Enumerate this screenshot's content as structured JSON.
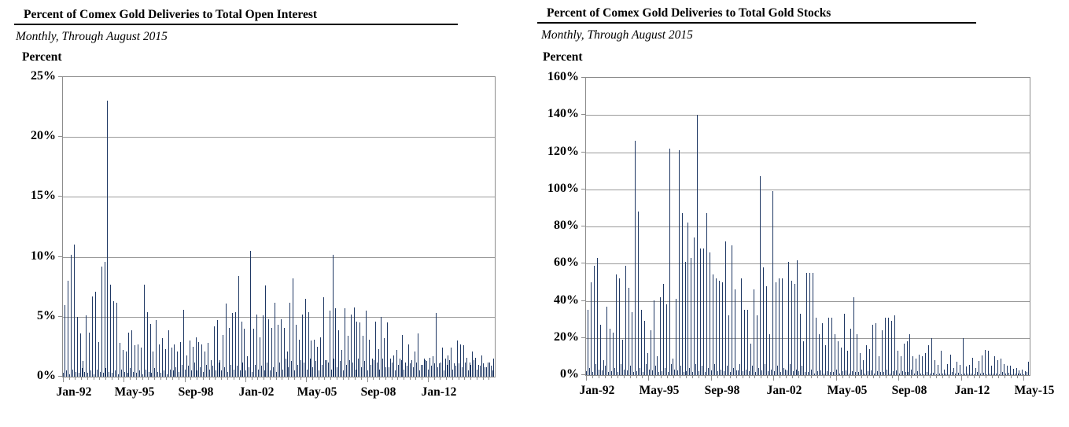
{
  "page": {
    "background_color": "#ffffff",
    "text_color": "#000000"
  },
  "colors": {
    "bar": "#1F3864",
    "gridline": "#9a9a9a",
    "plot_border": "#8c8c8c",
    "axis_text": "#000000"
  },
  "charts": [
    {
      "title": "Percent of Comex Gold Deliveries to Total Open Interest",
      "subtitle": "Monthly, Through August 2015",
      "y_axis_title": "Percent",
      "chart_data": {
        "type": "bar",
        "title": "Percent of Comex Gold Deliveries to Total Open Interest",
        "subtitle": "Monthly, Through August 2015",
        "ylabel": "Percent",
        "ylim": [
          0,
          25
        ],
        "y_ticks": [
          0,
          5,
          10,
          15,
          20,
          25
        ],
        "y_tick_suffix": "%",
        "grid": true,
        "legend": "none",
        "x_start": "Jan-1992",
        "x_end": "Aug-2015",
        "n_months": 284,
        "x_tick_months": [
          0,
          40,
          80,
          120,
          160,
          200,
          240
        ],
        "x_tick_labels": [
          "Jan-92",
          "May-95",
          "Sep-98",
          "Jan-02",
          "May-05",
          "Sep-08",
          "Jan-12"
        ],
        "values": [
          0.3,
          6,
          0.5,
          8,
          0.2,
          10.2,
          0.6,
          11,
          0.4,
          5,
          0.3,
          3.6,
          0.7,
          1.3,
          0.4,
          5.1,
          0.3,
          3.7,
          0.5,
          6.7,
          0.2,
          7.1,
          0.6,
          2.9,
          0.4,
          9.2,
          0.3,
          9.6,
          0.7,
          23,
          0.4,
          7.7,
          0.3,
          6.3,
          0.5,
          6.2,
          0.2,
          2.8,
          0.6,
          2.2,
          0.4,
          2.1,
          0.3,
          3.7,
          0.7,
          3.9,
          0.4,
          2.6,
          0.3,
          2.7,
          0.5,
          2.4,
          0.2,
          7.7,
          0.6,
          5.4,
          0.4,
          4.4,
          0.3,
          2.1,
          0.7,
          4.7,
          0.4,
          2.7,
          0.3,
          3.2,
          0.5,
          2.3,
          0.2,
          3.9,
          0.6,
          2.4,
          0.5,
          2.7,
          0.8,
          2.1,
          0.4,
          2.9,
          1.0,
          5.6,
          0.6,
          1.8,
          0.9,
          3.0,
          0.5,
          2.5,
          1.2,
          3.3,
          0.5,
          2.9,
          0.8,
          2.7,
          0.4,
          2.1,
          1.0,
          2.8,
          0.6,
          1.4,
          0.9,
          4.2,
          0.5,
          4.7,
          1.2,
          1.4,
          0.5,
          3.5,
          0.8,
          6.1,
          0.4,
          4.1,
          1.0,
          5.3,
          0.6,
          5.4,
          0.9,
          8.4,
          0.5,
          4.6,
          1.2,
          4.0,
          0.5,
          1.7,
          0.8,
          10.5,
          0.4,
          4.0,
          1.0,
          5.2,
          0.6,
          3.3,
          0.9,
          5.1,
          0.5,
          7.6,
          1.2,
          4.8,
          0.5,
          4.1,
          0.8,
          6.2,
          0.4,
          4.3,
          1.2,
          4.8,
          0.6,
          4.1,
          1.5,
          2.1,
          0.8,
          6.2,
          1.3,
          8.2,
          0.5,
          4.3,
          1.0,
          3.1,
          1.4,
          5.2,
          1.2,
          6.5,
          0.6,
          5.4,
          1.5,
          3.0,
          0.8,
          3.1,
          1.3,
          2.5,
          0.5,
          3.3,
          1.0,
          6.6,
          1.4,
          1.4,
          1.2,
          5.5,
          0.6,
          10.2,
          1.5,
          5.7,
          0.8,
          3.9,
          1.3,
          2.2,
          0.5,
          5.7,
          1.0,
          3.4,
          1.4,
          5.2,
          1.2,
          5.8,
          0.6,
          4.6,
          1.5,
          4.5,
          0.8,
          3.4,
          1.3,
          5.5,
          0.5,
          3.1,
          1.0,
          1.5,
          1.4,
          4.6,
          1.2,
          2.3,
          0.6,
          5.0,
          1.5,
          3.2,
          0.8,
          4.5,
          0.8,
          1.5,
          1.2,
          1.8,
          0.5,
          2.2,
          1.0,
          1.5,
          1.4,
          3.5,
          0.6,
          1.2,
          0.9,
          2.7,
          1.1,
          1.4,
          0.8,
          2.1,
          1.2,
          3.6,
          0.5,
          1.0,
          1.0,
          1.5,
          1.4,
          1.3,
          0.6,
          1.6,
          0.9,
          1.7,
          1.1,
          5.3,
          0.8,
          1.1,
          1.2,
          2.4,
          0.5,
          1.5,
          1.0,
          1.8,
          1.4,
          2.4,
          0.6,
          1.1,
          0.9,
          3.0,
          1.1,
          2.7,
          0.8,
          2.6,
          1.2,
          1.6,
          0.5,
          1.2,
          1.0,
          2.1,
          1.4,
          1.6,
          0.6,
          1.0,
          0.9,
          1.8,
          1.1,
          0.8,
          0.8,
          1.2,
          1.2,
          0.9,
          0.5,
          1.5
        ]
      }
    },
    {
      "title": "Percent of Comex Gold Deliveries to Total Gold Stocks",
      "subtitle": "Monthly, Through August 2015",
      "y_axis_title": "Percent",
      "chart_data": {
        "type": "bar",
        "title": "Percent of Comex Gold Deliveries to Total Gold Stocks",
        "subtitle": "Monthly, Through August 2015",
        "ylabel": "Percent",
        "ylim": [
          0,
          160
        ],
        "y_ticks": [
          0,
          20,
          40,
          60,
          80,
          100,
          120,
          140,
          160
        ],
        "y_tick_suffix": "%",
        "grid": true,
        "legend": "none",
        "x_start": "Jan-1992",
        "x_end": "Aug-2015",
        "n_months": 284,
        "x_tick_months": [
          0,
          40,
          80,
          120,
          160,
          200,
          240,
          280
        ],
        "x_tick_labels": [
          "Jan-92",
          "May-95",
          "Sep-98",
          "Jan-02",
          "May-05",
          "Sep-08",
          "Jan-12",
          "May-15"
        ],
        "values": [
          2,
          35,
          4,
          50,
          1.5,
          59,
          6,
          63,
          3,
          27,
          2.5,
          8,
          5,
          37,
          1.5,
          25,
          2,
          23,
          4,
          54,
          1.5,
          52,
          6,
          19,
          3,
          59,
          2.5,
          47,
          5,
          34,
          1.5,
          126,
          2,
          88,
          4,
          35,
          1.5,
          29,
          6,
          12,
          3,
          24,
          2.5,
          40,
          5,
          10,
          1.5,
          42,
          2,
          49,
          4,
          38,
          1.5,
          122,
          6,
          9,
          3,
          41,
          2.5,
          121,
          5,
          87,
          1.5,
          61,
          2,
          82,
          4,
          63,
          1.5,
          74,
          6,
          140,
          2,
          68,
          5,
          68,
          1.5,
          87,
          4,
          66,
          2.5,
          54,
          6,
          52,
          2,
          51,
          3,
          50,
          2,
          72,
          5,
          32,
          1.5,
          70,
          4,
          46,
          2.5,
          2.5,
          6,
          52,
          2,
          35,
          3,
          35,
          2,
          17,
          5,
          46,
          1.5,
          32,
          4,
          107,
          2.5,
          58,
          6,
          48,
          2,
          22,
          3,
          99,
          2,
          50,
          5,
          52,
          1.5,
          52,
          4,
          3,
          2.5,
          61,
          6,
          51,
          2,
          49,
          3,
          62,
          2,
          33,
          5,
          18,
          1.5,
          55,
          1.5,
          55,
          3,
          55,
          1,
          31,
          2,
          22,
          2.5,
          28,
          1,
          16,
          2,
          31,
          1.5,
          31,
          1.5,
          22,
          3,
          18,
          1,
          15,
          2,
          33,
          2.5,
          13,
          1,
          25,
          2,
          42,
          1.5,
          22,
          1.5,
          12,
          3,
          8,
          1,
          16,
          2,
          14,
          2.5,
          27,
          1,
          28,
          2,
          10,
          1.5,
          24,
          1.5,
          31,
          3,
          31,
          1,
          29,
          2,
          32,
          2.5,
          13,
          1,
          10,
          2,
          17,
          1.5,
          18,
          1.5,
          22,
          3,
          10,
          1,
          9,
          2,
          11,
          1,
          10,
          0.5,
          12,
          1.5,
          16,
          0.8,
          20,
          1.2,
          8,
          0.5,
          5.5,
          1,
          13,
          0.7,
          3,
          1,
          6,
          0.5,
          11,
          1.5,
          4,
          0.8,
          7,
          1.2,
          5.5,
          0.5,
          20,
          1,
          4.5,
          0.7,
          5.5,
          1,
          9.5,
          0.5,
          4,
          1.5,
          7.5,
          0.8,
          10.5,
          1.2,
          13.5,
          0.5,
          13,
          1,
          5,
          0.7,
          10,
          1,
          8,
          0.5,
          9,
          1.5,
          6,
          0.8,
          5,
          1.2,
          5,
          0.5,
          3.5,
          1,
          4,
          0.7,
          2.5,
          1,
          3,
          0.5,
          2,
          1.5,
          7
        ]
      }
    }
  ]
}
